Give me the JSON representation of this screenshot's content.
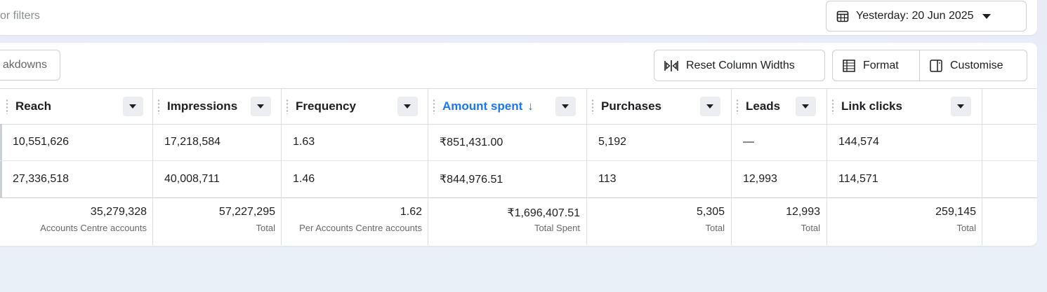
{
  "filters": {
    "placeholder_partial": "or filters"
  },
  "date_range": {
    "label": "Yesterday: 20 Jun 2025",
    "icon": "calendar-icon"
  },
  "toolbar": {
    "breakdowns_label": "akdowns",
    "reset_label": "Reset Column Widths",
    "format_label": "Format",
    "customise_label": "Customise"
  },
  "columns": [
    {
      "key": "reach",
      "label": "Reach"
    },
    {
      "key": "impressions",
      "label": "Impressions"
    },
    {
      "key": "frequency",
      "label": "Frequency"
    },
    {
      "key": "amount_spent",
      "label": "Amount spent",
      "sorted": "desc",
      "sort_icon": "↓"
    },
    {
      "key": "purchases",
      "label": "Purchases"
    },
    {
      "key": "leads",
      "label": "Leads"
    },
    {
      "key": "link_clicks",
      "label": "Link clicks"
    }
  ],
  "rows": [
    [
      "10,551,626",
      "17,218,584",
      "1.63",
      "₹851,431.00",
      "5,192",
      "—",
      "144,574"
    ],
    [
      "27,336,518",
      "40,008,711",
      "1.46",
      "₹844,976.51",
      "113",
      "12,993",
      "114,571"
    ]
  ],
  "totals": [
    {
      "value": "35,279,328",
      "label": "Accounts Centre accounts"
    },
    {
      "value": "57,227,295",
      "label": "Total"
    },
    {
      "value": "1.62",
      "label": "Per Accounts Centre accounts"
    },
    {
      "value": "₹1,696,407.51",
      "label": "Total Spent"
    },
    {
      "value": "5,305",
      "label": "Total"
    },
    {
      "value": "12,993",
      "label": "Total"
    },
    {
      "value": "259,145",
      "label": "Total"
    }
  ],
  "colors": {
    "accent": "#1877f2",
    "border": "#ccd0d5",
    "muted": "#65676b"
  }
}
